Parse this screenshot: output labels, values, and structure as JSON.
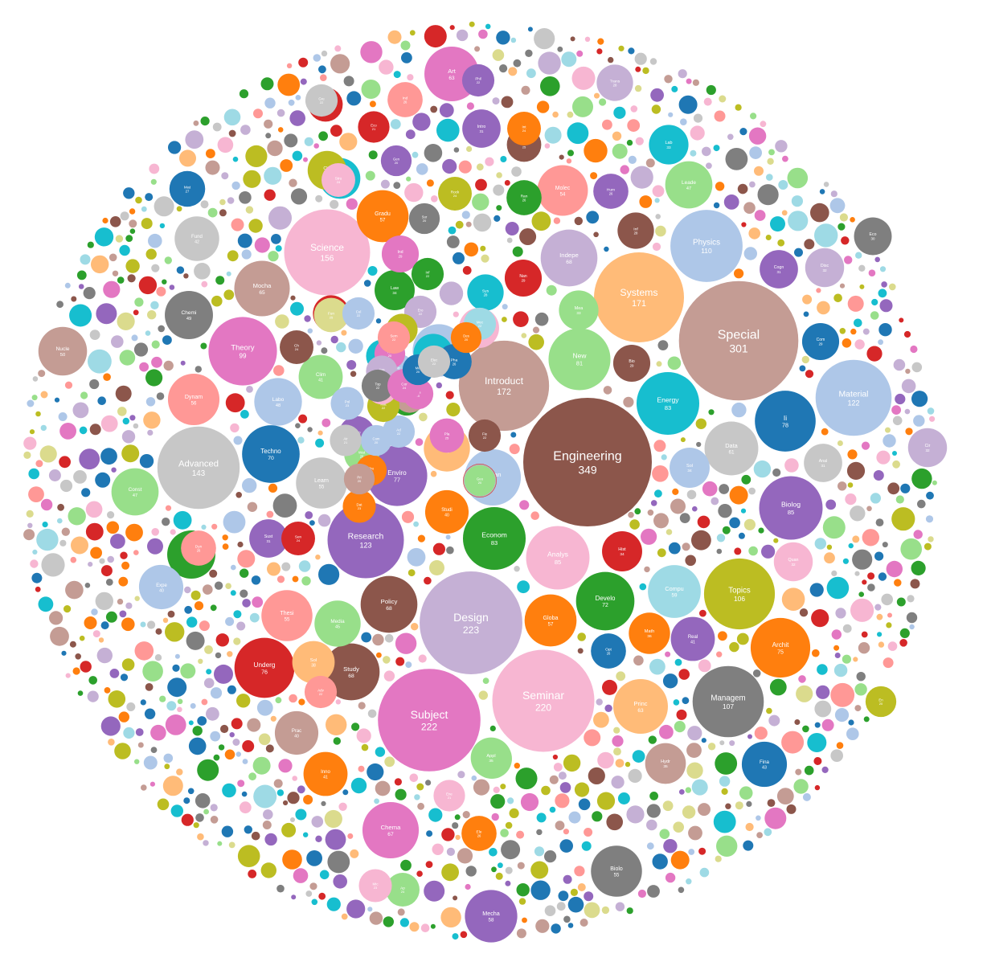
{
  "chart_data": {
    "type": "bubble",
    "title": "",
    "colors": [
      "#1f77b4",
      "#aec7e8",
      "#ff7f0e",
      "#ffbb78",
      "#2ca02c",
      "#98df8a",
      "#d62728",
      "#ff9896",
      "#9467bd",
      "#c5b0d5",
      "#8c564b",
      "#c49c94",
      "#e377c2",
      "#f7b6d2",
      "#7f7f7f",
      "#c7c7c7",
      "#bcbd22",
      "#dbdb8d",
      "#17becf",
      "#9edae5"
    ],
    "bubbles": [
      {
        "label": "Engineering",
        "value": 349,
        "color": "#8c564b"
      },
      {
        "label": "Special",
        "value": 301,
        "color": "#c49c94"
      },
      {
        "label": "Design",
        "value": 223,
        "color": "#c5b0d5"
      },
      {
        "label": "Subject",
        "value": 222,
        "color": "#e377c2"
      },
      {
        "label": "Seminar",
        "value": 220,
        "color": "#f7b6d2"
      },
      {
        "label": "Introduct",
        "value": 172,
        "color": "#c49c94"
      },
      {
        "label": "Systems",
        "value": 171,
        "color": "#ffbb78"
      },
      {
        "label": "Science",
        "value": 156,
        "color": "#f7b6d2"
      },
      {
        "label": "Advanced",
        "value": 143,
        "color": "#c7c7c7"
      },
      {
        "label": "Research",
        "value": 123,
        "color": "#9467bd"
      },
      {
        "label": "Material",
        "value": 122,
        "color": "#aec7e8"
      },
      {
        "label": "Physics",
        "value": 110,
        "color": "#aec7e8"
      },
      {
        "label": "Managem",
        "value": 107,
        "color": "#7f7f7f"
      },
      {
        "label": "Topics",
        "value": 106,
        "color": "#bcbd22"
      },
      {
        "label": "Theory",
        "value": 99,
        "color": "#e377c2"
      },
      {
        "label": "Biolog",
        "value": 85,
        "color": "#9467bd"
      },
      {
        "label": "Analys",
        "value": 85,
        "color": "#f7b6d2"
      },
      {
        "label": "Energy",
        "value": 83,
        "color": "#17becf"
      },
      {
        "label": "Econom",
        "value": 83,
        "color": "#2ca02c"
      },
      {
        "label": "New",
        "value": 81,
        "color": "#98df8a"
      },
      {
        "label": "Ii",
        "value": 78,
        "color": "#1f77b4"
      },
      {
        "label": "Enviro",
        "value": 77,
        "color": "#9467bd"
      },
      {
        "label": "Techno",
        "value": 70,
        "color": "#1f77b4"
      },
      {
        "label": "Policy",
        "value": 68,
        "color": "#8c564b"
      },
      {
        "label": "Study",
        "value": 68,
        "color": "#8c564b"
      },
      {
        "label": "Indepe",
        "value": 68,
        "color": "#c5b0d5"
      },
      {
        "label": "Urban",
        "value": 67,
        "color": "#aec7e8"
      },
      {
        "label": "Chema",
        "value": 67,
        "color": "#e377c2"
      },
      {
        "label": "Develo",
        "value": 72,
        "color": "#2ca02c"
      },
      {
        "label": "Mocha",
        "value": 65,
        "color": "#c49c94"
      },
      {
        "label": "Art",
        "value": 63,
        "color": "#e377c2"
      },
      {
        "label": "Princ",
        "value": 63,
        "color": "#ffbb78"
      },
      {
        "label": "Data",
        "value": 61,
        "color": "#c7c7c7"
      },
      {
        "label": "Compu",
        "value": 59,
        "color": "#9edae5"
      },
      {
        "label": "Mecha",
        "value": 58,
        "color": "#9467bd"
      },
      {
        "label": "Methe",
        "value": 58,
        "color": "#aec7e8"
      },
      {
        "label": "Dynam",
        "value": 56,
        "color": "#ff9896"
      },
      {
        "label": "Thesi",
        "value": 55,
        "color": "#ff9896"
      },
      {
        "label": "Learn",
        "value": 55,
        "color": "#c7c7c7"
      },
      {
        "label": "Globa",
        "value": 57,
        "color": "#ff7f0e"
      },
      {
        "label": "Biolo",
        "value": 55,
        "color": "#7f7f7f"
      },
      {
        "label": "Archit",
        "value": 75,
        "color": "#ff7f0e"
      },
      {
        "label": "Underg",
        "value": 76,
        "color": "#d62728"
      },
      {
        "label": "Nucle",
        "value": 50,
        "color": "#c49c94"
      },
      {
        "label": "Chemi",
        "value": 49,
        "color": "#7f7f7f"
      },
      {
        "label": "Compu",
        "value": 49,
        "color": "#2ca02c"
      },
      {
        "label": "Labo",
        "value": 48,
        "color": "#aec7e8"
      },
      {
        "label": "Leade",
        "value": 47,
        "color": "#98df8a"
      },
      {
        "label": "Const",
        "value": 47,
        "color": "#98df8a"
      },
      {
        "label": "Gradu",
        "value": 57,
        "color": "#ff7f0e"
      },
      {
        "label": "Plan",
        "value": 45,
        "color": "#ffbb78"
      },
      {
        "label": "Media",
        "value": 45,
        "color": "#98df8a"
      },
      {
        "label": "Fina",
        "value": 43,
        "color": "#1f77b4"
      },
      {
        "label": "Fund",
        "value": 42,
        "color": "#c7c7c7"
      },
      {
        "label": "Clim",
        "value": 41,
        "color": "#98df8a"
      },
      {
        "label": "Real",
        "value": 41,
        "color": "#9467bd"
      },
      {
        "label": "Inno",
        "value": 41,
        "color": "#ff7f0e"
      },
      {
        "label": "Studi",
        "value": 40,
        "color": "#ff7f0e"
      },
      {
        "label": "Molec",
        "value": 54,
        "color": "#ff9896"
      },
      {
        "label": "Mod",
        "value": 40,
        "color": "#aec7e8"
      },
      {
        "label": "Expe",
        "value": 40,
        "color": "#aec7e8"
      },
      {
        "label": "Prac",
        "value": 40,
        "color": "#c49c94"
      },
      {
        "label": "Quan",
        "value": 32,
        "color": "#f7b6d2"
      },
      {
        "label": "Appl",
        "value": 34,
        "color": "#98df8a"
      },
      {
        "label": "Appl",
        "value": 35,
        "color": "#98df8a"
      },
      {
        "label": "Cogn",
        "value": 31,
        "color": "#9467bd"
      },
      {
        "label": "Disc",
        "value": 32,
        "color": "#c5b0d5"
      },
      {
        "label": "Eco",
        "value": 30,
        "color": "#7f7f7f"
      },
      {
        "label": "Anal",
        "value": 31,
        "color": "#c7c7c7"
      },
      {
        "label": "Cir",
        "value": 32,
        "color": "#c5b0d5"
      },
      {
        "label": "Hist",
        "value": 34,
        "color": "#d62728"
      },
      {
        "label": "Sol",
        "value": 34,
        "color": "#aec7e8"
      },
      {
        "label": "Hydr",
        "value": 35,
        "color": "#c49c94"
      },
      {
        "label": "Math",
        "value": 36,
        "color": "#ff7f0e"
      },
      {
        "label": "Inf",
        "value": 28,
        "color": "#8c564b"
      },
      {
        "label": "Lab",
        "value": 33,
        "color": "#17becf"
      },
      {
        "label": "Stati",
        "value": 35,
        "color": "#17becf"
      },
      {
        "label": "Bio",
        "value": 29,
        "color": "#8c564b"
      },
      {
        "label": "Sol",
        "value": 38,
        "color": "#ffbb78"
      },
      {
        "label": "Com",
        "value": 29,
        "color": "#1f77b4"
      },
      {
        "label": "Opt",
        "value": 26,
        "color": "#1f77b4"
      },
      {
        "label": "Law",
        "value": 34,
        "color": "#2ca02c"
      },
      {
        "label": "Mea",
        "value": 33,
        "color": "#98df8a"
      },
      {
        "label": "Sust",
        "value": 31,
        "color": "#9467bd"
      },
      {
        "label": "Sys",
        "value": 28,
        "color": "#17becf"
      },
      {
        "label": "Opto",
        "value": 34,
        "color": "#f7b6d2"
      },
      {
        "label": "Intro",
        "value": 31,
        "color": "#9467bd"
      },
      {
        "label": "Dyn",
        "value": 26,
        "color": "#ff9896"
      },
      {
        "label": "Mat",
        "value": 27,
        "color": "#1f77b4"
      },
      {
        "label": "Ran",
        "value": 26,
        "color": "#2ca02c"
      },
      {
        "label": "Mec",
        "value": 22,
        "color": "#9edae5"
      },
      {
        "label": "Mod",
        "value": 33,
        "color": "#17becf"
      },
      {
        "label": "Hum",
        "value": 26,
        "color": "#9467bd"
      },
      {
        "label": "Wor",
        "value": 25,
        "color": "#8c564b"
      },
      {
        "label": "Rock",
        "value": 24,
        "color": "#bcbd22"
      },
      {
        "label": "Phil",
        "value": 22,
        "color": "#9467bd"
      },
      {
        "label": "Trans",
        "value": 28,
        "color": "#c5b0d5"
      },
      {
        "label": "Chil",
        "value": 32,
        "color": "#bcbd22"
      },
      {
        "label": "Nan",
        "value": 29,
        "color": "#d62728"
      },
      {
        "label": "Mol",
        "value": 28,
        "color": "#d62728"
      },
      {
        "label": "Pha",
        "value": 26,
        "color": "#1f77b4"
      },
      {
        "label": "Ch",
        "value": 24,
        "color": "#8c564b"
      },
      {
        "label": "Sen",
        "value": 24,
        "color": "#d62728"
      },
      {
        "label": "Ele",
        "value": 26,
        "color": "#ff7f0e"
      },
      {
        "label": "Ero",
        "value": 22,
        "color": "#c5b0d5"
      },
      {
        "label": "Ene",
        "value": 21,
        "color": "#f7b6d2"
      },
      {
        "label": "Ap",
        "value": 24,
        "color": "#98df8a"
      },
      {
        "label": "Adv",
        "value": 22,
        "color": "#ff9896"
      },
      {
        "label": "Sur",
        "value": 20,
        "color": "#7f7f7f"
      },
      {
        "label": "Mic",
        "value": 23,
        "color": "#f7b6d2"
      },
      {
        "label": "En",
        "value": 20,
        "color": "#bcbd22"
      },
      {
        "label": "Ind",
        "value": 26,
        "color": "#ff9896"
      },
      {
        "label": "Eco",
        "value": 21,
        "color": "#d62728"
      },
      {
        "label": "Fun",
        "value": 25,
        "color": "#dbdb8d"
      },
      {
        "label": "Geo",
        "value": 27,
        "color": "#9467bd"
      },
      {
        "label": "Ad",
        "value": 22,
        "color": "#aec7e8"
      },
      {
        "label": "Pla",
        "value": 25,
        "color": "#e377c2"
      },
      {
        "label": "Dat",
        "value": 23,
        "color": "#ff7f0e"
      },
      {
        "label": "Fie",
        "value": 22,
        "color": "#8c564b"
      },
      {
        "label": "Pol",
        "value": 23,
        "color": "#aec7e8"
      },
      {
        "label": "Int",
        "value": 24,
        "color": "#ff7f0e"
      },
      {
        "label": "Mac",
        "value": 20,
        "color": "#2ca02c"
      },
      {
        "label": "Ind",
        "value": 29,
        "color": "#e377c2"
      },
      {
        "label": "Inf",
        "value": 22,
        "color": "#2ca02c"
      },
      {
        "label": "Net",
        "value": 22,
        "color": "#ffbb78"
      },
      {
        "label": "Em",
        "value": 25,
        "color": "#d62728"
      },
      {
        "label": "Gre",
        "value": 22,
        "color": "#c7c7c7"
      },
      {
        "label": "Stru",
        "value": 24,
        "color": "#f7b6d2"
      },
      {
        "label": "Geo",
        "value": 23,
        "color": "#17becf"
      },
      {
        "label": "Str",
        "value": 22,
        "color": "#aec7e8"
      },
      {
        "label": "Arc",
        "value": 20,
        "color": "#e377c2"
      },
      {
        "label": "Ma",
        "value": 21,
        "color": "#c49c94"
      },
      {
        "label": "Mat",
        "value": 22,
        "color": "#bcbd22"
      },
      {
        "label": "Gen",
        "value": 20,
        "color": "#9467bd"
      },
      {
        "label": "Cul",
        "value": 22,
        "color": "#aec7e8"
      },
      {
        "label": "Ass",
        "value": 21,
        "color": "#c5b0d5"
      },
      {
        "label": "Wat",
        "value": 26,
        "color": "#98df8a"
      },
      {
        "label": "Pro",
        "value": 20,
        "color": "#ff7f0e"
      },
      {
        "label": "Com",
        "value": 20,
        "color": "#aec7e8"
      },
      {
        "label": "Air",
        "value": 21,
        "color": "#c7c7c7"
      },
      {
        "label": "Pri",
        "value": 20,
        "color": "#c49c94"
      },
      {
        "label": "Ima",
        "value": 20,
        "color": "#e377c2"
      },
      {
        "label": "Cel",
        "value": 21,
        "color": "#bcbd22"
      },
      {
        "label": "Spe",
        "value": 20,
        "color": "#f7b6d2"
      },
      {
        "label": "Sem",
        "value": 22,
        "color": "#ff9896"
      },
      {
        "label": "Top",
        "value": 22,
        "color": "#7f7f7f"
      },
      {
        "label": "Des",
        "value": 20,
        "color": "#ff7f0e"
      },
      {
        "label": "Cor",
        "value": 24,
        "color": "#e377c2"
      },
      {
        "label": "Mel",
        "value": 20,
        "color": "#1f77b4"
      },
      {
        "label": "Elec",
        "value": 22,
        "color": "#c7c7c7"
      },
      {
        "label": "Sus",
        "value": 24,
        "color": "#d62728"
      },
      {
        "label": "Mat",
        "value": 23,
        "color": "#c49c94"
      },
      {
        "label": "Sol",
        "value": 20,
        "color": "#2ca02c"
      },
      {
        "label": "Ma",
        "value": 20,
        "color": "#d62728"
      },
      {
        "label": "Int",
        "value": 21,
        "color": "#aec7e8"
      },
      {
        "label": "Str",
        "value": 20,
        "color": "#aec7e8"
      },
      {
        "label": "Geo",
        "value": 20,
        "color": "#98df8a"
      }
    ]
  }
}
